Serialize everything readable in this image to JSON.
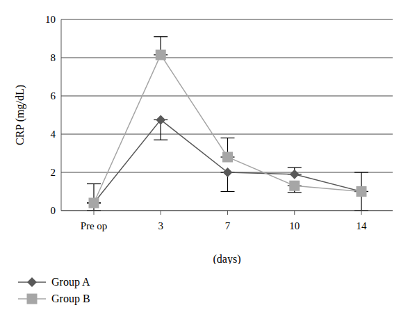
{
  "chart_data": {
    "type": "line",
    "y_label": "CRP (mg/dL)",
    "x_label": "(days)",
    "categories": [
      "Pre op",
      "3",
      "7",
      "10",
      "14"
    ],
    "series": [
      {
        "name": "Group A",
        "color": "#595959",
        "marker": "diamond",
        "values": [
          0.4,
          4.75,
          2.0,
          1.9,
          1.0
        ],
        "errors": [
          [
            0.4,
            0
          ],
          [
            1.05,
            0
          ],
          [
            1.0,
            0
          ],
          [
            0,
            0.35
          ],
          [
            1.0,
            0
          ]
        ]
      },
      {
        "name": "Group B",
        "color": "#a6a6a6",
        "marker": "square",
        "values": [
          0.4,
          8.15,
          2.8,
          1.3,
          1.0
        ],
        "errors": [
          [
            0,
            1.0
          ],
          [
            0,
            0.95
          ],
          [
            0,
            1.0
          ],
          [
            0.35,
            0
          ],
          [
            0,
            1.0
          ]
        ]
      }
    ],
    "ylim": [
      0,
      10
    ],
    "yticks": [
      0,
      2,
      4,
      6,
      8,
      10
    ],
    "grid": true,
    "legend": "bottom"
  }
}
